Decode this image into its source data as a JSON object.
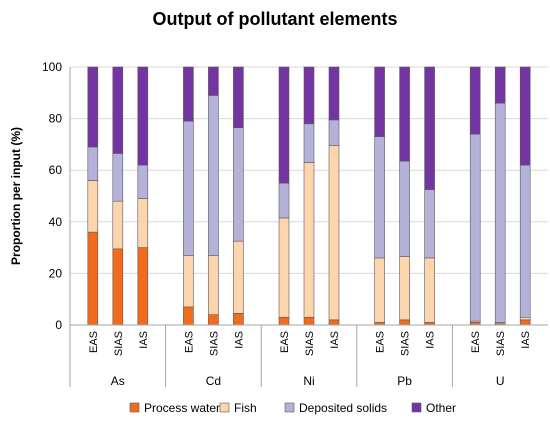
{
  "chart_data": {
    "type": "bar",
    "stacked": true,
    "title": "Output of pollutant elements",
    "xlabel": "",
    "ylabel": "Proportion per input (%)",
    "ylim": [
      0,
      100
    ],
    "yticks": [
      0,
      20,
      40,
      60,
      80,
      100
    ],
    "groups": [
      "As",
      "Cd",
      "Ni",
      "Pb",
      "U"
    ],
    "subcategories": [
      "EAS",
      "SIAS",
      "IAS"
    ],
    "series": [
      {
        "name": "Process water",
        "color": "#f26b1d",
        "values": [
          36,
          29.5,
          30,
          7,
          4,
          4.5,
          3,
          3,
          2,
          1,
          2,
          1,
          1,
          0.5,
          2
        ]
      },
      {
        "name": "Fish",
        "color": "#fcd5ac",
        "values": [
          20,
          18.5,
          19,
          20,
          23,
          28,
          38.5,
          60,
          67.5,
          25,
          24.5,
          25,
          0.5,
          0.5,
          1
        ]
      },
      {
        "name": "Deposited solids",
        "color": "#b4b2d9",
        "values": [
          13,
          18.5,
          13,
          52,
          62,
          44,
          13.5,
          15,
          10,
          47,
          37,
          26.5,
          72.5,
          85,
          59
        ]
      },
      {
        "name": "Other",
        "color": "#7435a3",
        "values": [
          31,
          33.5,
          38,
          21,
          11,
          23.5,
          45,
          22,
          20.5,
          27,
          36.5,
          47.5,
          26,
          14,
          38
        ]
      }
    ],
    "grid": true,
    "legend_position": "bottom"
  }
}
